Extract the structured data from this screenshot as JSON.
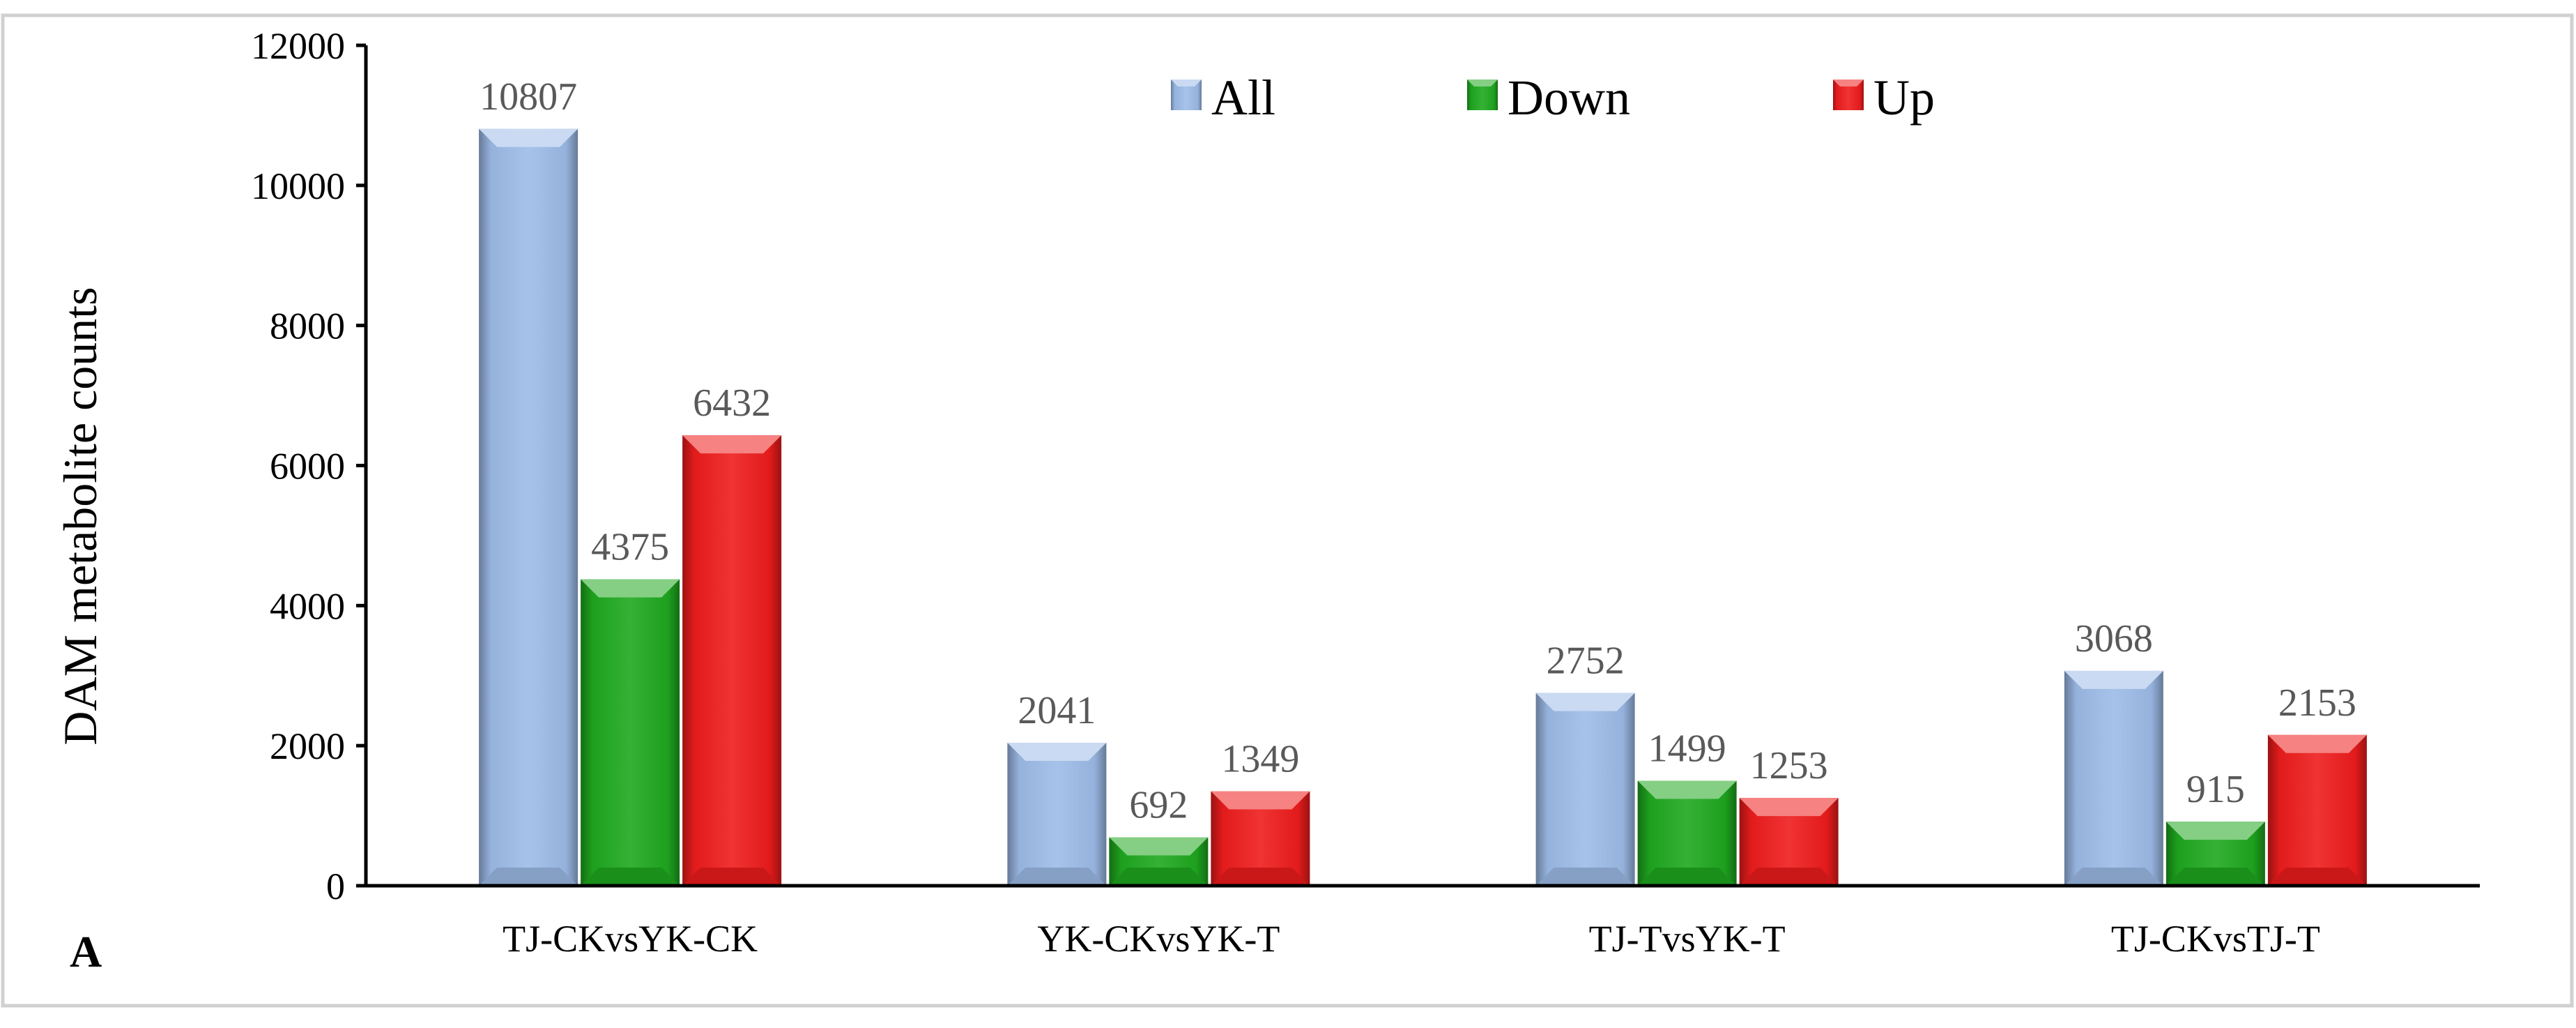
{
  "panel_label": "A",
  "chart_data": {
    "type": "bar",
    "title": "",
    "xlabel": "",
    "ylabel": "DAM metabolite counts",
    "ylim": [
      0,
      12000
    ],
    "yticks": [
      0,
      2000,
      4000,
      6000,
      8000,
      10000,
      12000
    ],
    "categories": [
      "TJ-CKvsYK-CK",
      "YK-CKvsYK-T",
      "TJ-TvsYK-T",
      "TJ-CKvsTJ-T"
    ],
    "series": [
      {
        "name": "All",
        "color": "#9dbbe8",
        "values": [
          10807,
          2041,
          2752,
          3068
        ]
      },
      {
        "name": "Down",
        "color": "#1fa81f",
        "values": [
          4375,
          692,
          1499,
          915
        ]
      },
      {
        "name": "Up",
        "color": "#ee1c1c",
        "values": [
          6432,
          1349,
          1253,
          2153
        ]
      }
    ],
    "legend_position": "top-center",
    "grid": false
  }
}
